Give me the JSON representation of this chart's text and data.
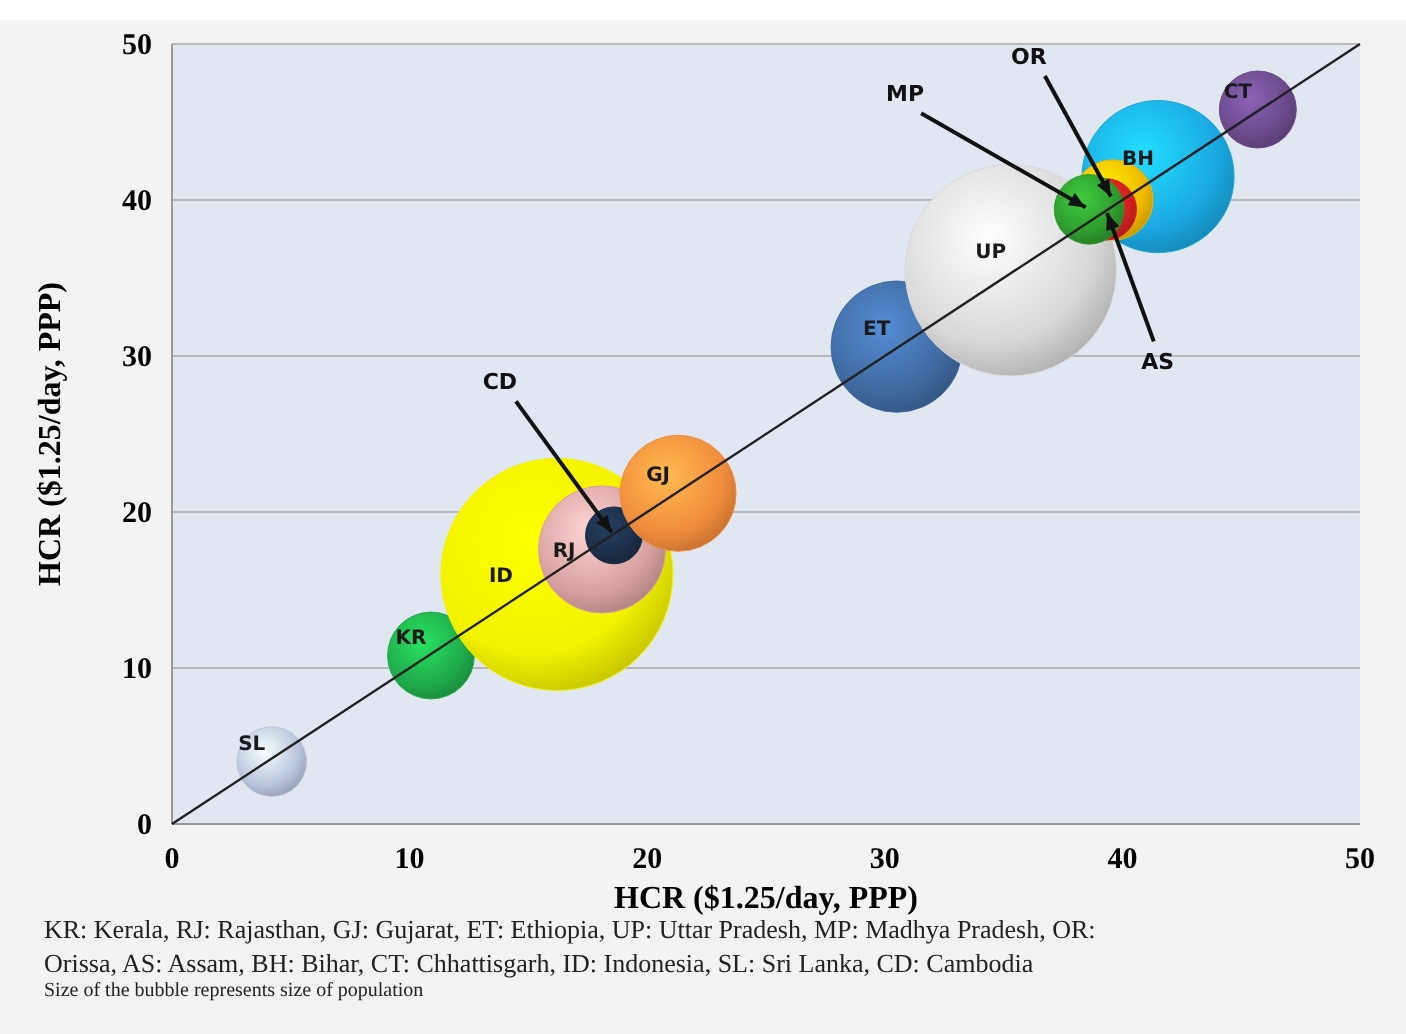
{
  "chart_data": {
    "type": "bubble",
    "xlabel": "HCR ($1.25/day, PPP)",
    "ylabel": "HCR ($1.25/day, PPP)",
    "xlim": [
      0,
      50
    ],
    "xticks": [
      0,
      10,
      20,
      30,
      40,
      50
    ],
    "ylim": [
      0,
      50
    ],
    "yticks": [
      0,
      10,
      20,
      30,
      40,
      50
    ],
    "grid": "y",
    "series": [
      {
        "name": "SL",
        "color": "#b8c4dc",
        "x": [
          4.2
        ],
        "values": [
          4.0
        ],
        "sizes": [
          0.09
        ]
      },
      {
        "name": "KR",
        "color": "#1faa4a",
        "x": [
          10.9
        ],
        "values": [
          10.8
        ],
        "sizes": [
          0.14
        ]
      },
      {
        "name": "ID",
        "color": "#f2f200",
        "x": [
          16.2
        ],
        "values": [
          16.0
        ],
        "sizes": [
          1
        ]
      },
      {
        "name": "RJ",
        "color": "#d8a0a0",
        "x": [
          18.1
        ],
        "values": [
          17.6
        ],
        "sizes": [
          0.3
        ]
      },
      {
        "color": "#1c2f48",
        "x": [
          18.6
        ],
        "values": [
          18.5
        ],
        "sizes": [
          0.06
        ]
      },
      {
        "name": "GJ",
        "color": "#f08c3c",
        "x": [
          21.3
        ],
        "values": [
          21.2
        ],
        "sizes": [
          0.25
        ]
      },
      {
        "name": "ET",
        "color": "#3f6aa0",
        "x": [
          30.5
        ],
        "values": [
          30.6
        ],
        "sizes": [
          0.32
        ]
      },
      {
        "name": "UP",
        "color": "#d8d8d8",
        "x": [
          35.3
        ],
        "values": [
          35.5
        ],
        "sizes": [
          0.83
        ]
      },
      {
        "name": "BH",
        "color": "#1aa8e0",
        "x": [
          41.5
        ],
        "values": [
          41.5
        ],
        "sizes": [
          0.43
        ]
      },
      {
        "color": "#f0b800",
        "x": [
          39.6
        ],
        "values": [
          40.0
        ],
        "sizes": [
          0.12
        ]
      },
      {
        "color": "#d42020",
        "x": [
          39.3
        ],
        "values": [
          39.4
        ],
        "sizes": [
          0.07
        ]
      },
      {
        "color": "#2e9a2e",
        "x": [
          38.6
        ],
        "values": [
          39.4
        ],
        "sizes": [
          0.09
        ]
      },
      {
        "name": "CT",
        "color": "#6a4a8a",
        "x": [
          45.7
        ],
        "values": [
          45.8
        ],
        "sizes": [
          0.11
        ]
      },
      {
        "type": "line",
        "color": "#202020",
        "x": [
          0,
          50
        ],
        "values": [
          0,
          50
        ]
      }
    ],
    "annotations": [
      {
        "text": "CD",
        "x": 18.6,
        "y": 18.5
      },
      {
        "text": "MP",
        "x": 38.6,
        "y": 39.4
      },
      {
        "text": "OR",
        "x": 39.6,
        "y": 40.0
      },
      {
        "text": "AS",
        "x": 39.3,
        "y": 39.4
      },
      "KR: Kerala, RJ: Rajasthan, GJ: Gujarat, ET: Ethiopia, UP: Uttar Pradesh, MP: Madhya Pradesh, OR: Orissa, AS: Assam, BH: Bihar, CT: Chhattisgarh, ID: Indonesia, SL: Sri Lanka, CD: Cambodia",
      "Size of the bubble represents size of population"
    ]
  }
}
